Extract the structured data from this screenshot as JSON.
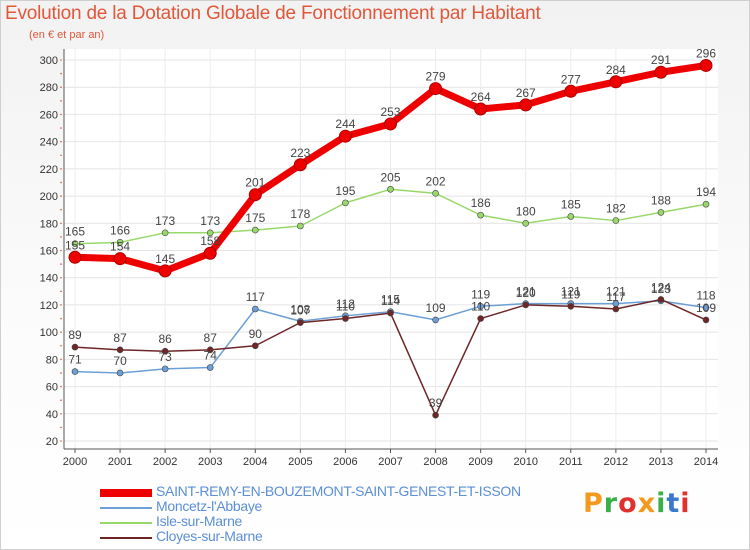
{
  "chart_data": {
    "type": "line",
    "title": "Evolution de la Dotation Globale de Fonctionnement par Habitant",
    "subtitle": "(en € et par an)",
    "xlabel": "",
    "ylabel": "",
    "ylim": [
      20,
      300
    ],
    "yticks": [
      20,
      40,
      60,
      80,
      100,
      120,
      140,
      160,
      180,
      200,
      220,
      240,
      260,
      280,
      300
    ],
    "categories": [
      "2000",
      "2001",
      "2002",
      "2003",
      "2004",
      "2005",
      "2006",
      "2007",
      "2008",
      "2009",
      "2010",
      "2011",
      "2012",
      "2013",
      "2014"
    ],
    "grid": true,
    "legend_position": "bottom-left",
    "series": [
      {
        "name": "SAINT-REMY-EN-BOUZEMONT-SAINT-GENEST-ET-ISSON",
        "color": "#ee0000",
        "emphasis": true,
        "values": [
          155,
          154,
          145,
          158,
          201,
          223,
          244,
          253,
          279,
          264,
          267,
          277,
          284,
          291,
          296
        ]
      },
      {
        "name": "Moncetz-l'Abbaye",
        "color": "#6b9fd6",
        "emphasis": false,
        "values": [
          71,
          70,
          73,
          74,
          117,
          108,
          112,
          115,
          109,
          119,
          121,
          121,
          121,
          123,
          118
        ]
      },
      {
        "name": "Isle-sur-Marne",
        "color": "#98d86a",
        "emphasis": false,
        "values": [
          165,
          166,
          173,
          173,
          175,
          178,
          195,
          205,
          202,
          186,
          180,
          185,
          182,
          188,
          194
        ]
      },
      {
        "name": "Cloyes-sur-Marne",
        "color": "#6e2626",
        "emphasis": false,
        "values": [
          89,
          87,
          86,
          87,
          90,
          107,
          110,
          114,
          39,
          110,
          120,
          119,
          117,
          124,
          109
        ]
      }
    ]
  },
  "branding": {
    "logo_letters": [
      "P",
      "r",
      "o",
      "x",
      "i",
      "t",
      "i"
    ],
    "logo_colors": [
      "#f39a1e",
      "#38b04a",
      "#e0312f",
      "#f39a1e",
      "#38b04a",
      "#3a79c9",
      "#e0312f"
    ]
  }
}
